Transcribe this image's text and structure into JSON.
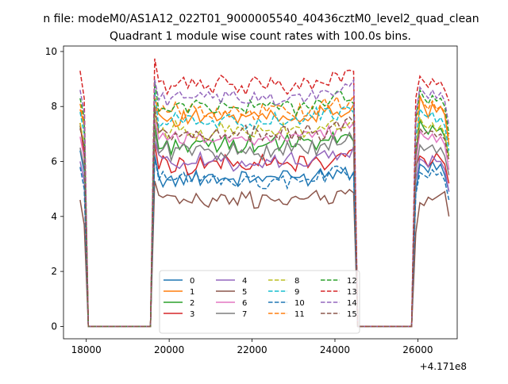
{
  "page": {
    "suptitle": "n file: modeM0/AS1A12_022T01_9000005540_40436cztM0_level2_quad_clean",
    "title": "Quadrant 1 module wise count rates with 100.0s bins.",
    "x_offset_label": "+4.171e8"
  },
  "chart_data": {
    "type": "line",
    "title": "Quadrant 1 module wise count rates with 100.0s bins.",
    "xlabel": "",
    "ylabel": "",
    "x_offset": 417100000,
    "xlim": [
      17450,
      26950
    ],
    "ylim": [
      -0.45,
      10.2
    ],
    "x_ticks": [
      18000,
      20000,
      22000,
      24000,
      26000
    ],
    "y_ticks": [
      0,
      2,
      4,
      6,
      8,
      10
    ],
    "x_tick_labels": [
      "18000",
      "20000",
      "22000",
      "24000",
      "26000"
    ],
    "y_tick_labels": [
      "0",
      "2",
      "4",
      "6",
      "8",
      "10"
    ],
    "grid": false,
    "legend": {
      "placement": "lower center",
      "columns": 4
    },
    "segments": {
      "first_start": 17850,
      "first_end": 17950,
      "gap_start": 18050,
      "gap_end": 19550,
      "second_start": 19650,
      "second_end": 24450,
      "gap2_start": 24550,
      "gap2_end": 25850,
      "third_start": 25950,
      "third_end": 26750,
      "step": 100
    },
    "series": [
      {
        "name": "0",
        "color": "#1f77b4",
        "dash": "solid",
        "level": 5.4,
        "first": [
          6.4,
          5.6
        ],
        "third": [
          4.9,
          5.9,
          5.8,
          5.6,
          6.0,
          5.7,
          5.9,
          5.5,
          4.9
        ]
      },
      {
        "name": "1",
        "color": "#ff7f0e",
        "dash": "solid",
        "level": 7.6,
        "first": [
          7.9,
          7.3
        ],
        "third": [
          5.6,
          8.4,
          8.0,
          7.6,
          8.1,
          7.8,
          8.0,
          7.7,
          6.6
        ]
      },
      {
        "name": "2",
        "color": "#2ca02c",
        "dash": "solid",
        "level": 6.6,
        "first": [
          7.3,
          6.5
        ],
        "third": [
          6.2,
          7.5,
          7.2,
          7.0,
          7.3,
          7.1,
          7.2,
          6.9,
          6.2
        ]
      },
      {
        "name": "3",
        "color": "#d62728",
        "dash": "solid",
        "level": 5.9,
        "first": [
          7.4,
          6.2
        ],
        "third": [
          5.8,
          6.2,
          6.1,
          5.8,
          6.0,
          6.3,
          6.1,
          5.9,
          5.2
        ]
      },
      {
        "name": "4",
        "color": "#9467bd",
        "dash": "solid",
        "level": 6.0,
        "first": [
          6.0,
          5.3
        ],
        "third": [
          5.3,
          6.1,
          6.0,
          5.8,
          6.2,
          6.0,
          6.0,
          5.7,
          4.9
        ]
      },
      {
        "name": "5",
        "color": "#8c564b",
        "dash": "solid",
        "level": 4.6,
        "first": [
          4.6,
          3.7
        ],
        "third": [
          3.4,
          4.5,
          4.4,
          4.7,
          4.6,
          4.7,
          4.8,
          4.9,
          4.0
        ]
      },
      {
        "name": "6",
        "color": "#e377c2",
        "dash": "solid",
        "level": 6.9,
        "first": [
          6.9,
          6.1
        ],
        "third": [
          5.9,
          7.1,
          6.9,
          6.8,
          7.0,
          6.7,
          6.9,
          6.6,
          5.7
        ]
      },
      {
        "name": "7",
        "color": "#7f7f7f",
        "dash": "solid",
        "level": 6.4,
        "first": [
          6.5,
          5.8
        ],
        "third": [
          5.6,
          6.6,
          6.4,
          6.5,
          6.6,
          6.3,
          6.5,
          6.2,
          5.5
        ]
      },
      {
        "name": "8",
        "color": "#bcbd22",
        "dash": "dashed",
        "level": 7.1,
        "first": [
          7.4,
          6.6
        ],
        "third": [
          6.4,
          7.6,
          7.3,
          7.2,
          7.4,
          7.1,
          7.3,
          7.0,
          6.1
        ]
      },
      {
        "name": "9",
        "color": "#17becf",
        "dash": "dashed",
        "level": 7.5,
        "first": [
          7.8,
          7.0
        ],
        "third": [
          6.8,
          7.9,
          7.7,
          7.6,
          7.8,
          7.4,
          7.6,
          7.3,
          6.4
        ]
      },
      {
        "name": "10",
        "color": "#1f77b4",
        "dash": "dashed",
        "level": 5.3,
        "first": [
          5.8,
          5.0
        ],
        "third": [
          4.8,
          5.6,
          5.5,
          5.4,
          5.7,
          5.5,
          5.6,
          5.3,
          4.6
        ]
      },
      {
        "name": "11",
        "color": "#ff7f0e",
        "dash": "dashed",
        "level": 7.8,
        "first": [
          8.1,
          7.4
        ],
        "third": [
          7.3,
          8.3,
          8.1,
          7.9,
          8.2,
          7.9,
          8.0,
          7.8,
          6.8
        ]
      },
      {
        "name": "12",
        "color": "#2ca02c",
        "dash": "dashed",
        "level": 8.0,
        "first": [
          8.3,
          7.6
        ],
        "third": [
          7.5,
          8.6,
          8.3,
          8.1,
          8.4,
          8.2,
          8.3,
          8.0,
          7.0
        ]
      },
      {
        "name": "13",
        "color": "#d62728",
        "dash": "dashed",
        "level": 8.8,
        "first": [
          9.3,
          8.3
        ],
        "third": [
          8.3,
          9.1,
          8.9,
          8.7,
          9.0,
          8.8,
          8.9,
          8.6,
          8.2
        ]
      },
      {
        "name": "14",
        "color": "#9467bd",
        "dash": "dashed",
        "level": 8.3,
        "first": [
          8.6,
          7.8
        ],
        "third": [
          7.7,
          8.7,
          8.5,
          8.3,
          8.6,
          8.3,
          8.5,
          8.2,
          7.3
        ]
      },
      {
        "name": "15",
        "color": "#8c564b",
        "dash": "dashed",
        "level": 7.0,
        "first": [
          7.2,
          6.5
        ],
        "third": [
          6.4,
          7.2,
          7.0,
          7.1,
          7.1,
          6.9,
          7.0,
          6.8,
          6.0
        ]
      }
    ]
  }
}
